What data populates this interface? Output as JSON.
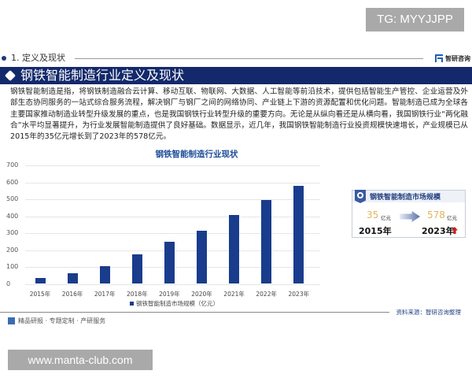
{
  "overlay": {
    "tg_label": "TG: MYYJJPP",
    "site_label": "www.manta-club.com"
  },
  "header": {
    "section_label": "1. 定义及现状",
    "brand_label": "智研咨询",
    "title": "钢铁智能制造行业定义及现状"
  },
  "body": {
    "paragraph": "钢铁智能制造是指，将钢铁制造融合云计算、移动互联、物联网、大数据、人工智能等前沿技术，提供包括智能生产管控、企业运营及外部生态协同服务的一站式综合服务流程，解决钢厂与钢厂之间的网络协同、产业链上下游的资源配置和优化问题。智能制造已成为全球各主要国家推动制造业转型升级发展的重点，也是我国钢铁行业转型升级的重要方向。无论是从纵向看还是从横向看，我国钢铁行业“两化融合”水平均显著提升，为行业发展智能制造提供了良好基础。数据显示，近几年，我国钢铁智能制造行业投资规模快速增长，产业规模已从2015年的35亿元增长到了2023年的578亿元。"
  },
  "chart_data": {
    "type": "bar",
    "title": "钢铁智能制造行业现状",
    "categories": [
      "2015年",
      "2016年",
      "2017年",
      "2018年",
      "2019年",
      "2020年",
      "2021年",
      "2022年",
      "2023年"
    ],
    "series": [
      {
        "name": "钢铁智能制造市场规模（亿元）",
        "values": [
          35,
          63,
          105,
          173,
          247,
          312,
          405,
          494,
          578
        ],
        "color": "#1a3c8c"
      }
    ],
    "xlabel": "",
    "ylabel": "",
    "ylim": [
      0,
      700
    ],
    "yticks": [
      "0",
      "100",
      "200",
      "300",
      "400",
      "500",
      "600",
      "700"
    ],
    "grid": true,
    "legend_position": "bottom"
  },
  "stat_card": {
    "title": "钢铁智能制造市场规模",
    "start_value": "35",
    "start_unit": "亿元",
    "start_year": "2015年",
    "end_value": "578",
    "end_unit": "亿元",
    "end_year": "2023年"
  },
  "footer": {
    "source": "资料来源：智研咨询整理",
    "tagline": "精品研报 · 专题定制 · 产研服务"
  },
  "colors": {
    "title_bar": "#13296b",
    "bar": "#1a3c8c",
    "accent_gold": "#e0b45e",
    "up_arrow": "#c9201f"
  }
}
